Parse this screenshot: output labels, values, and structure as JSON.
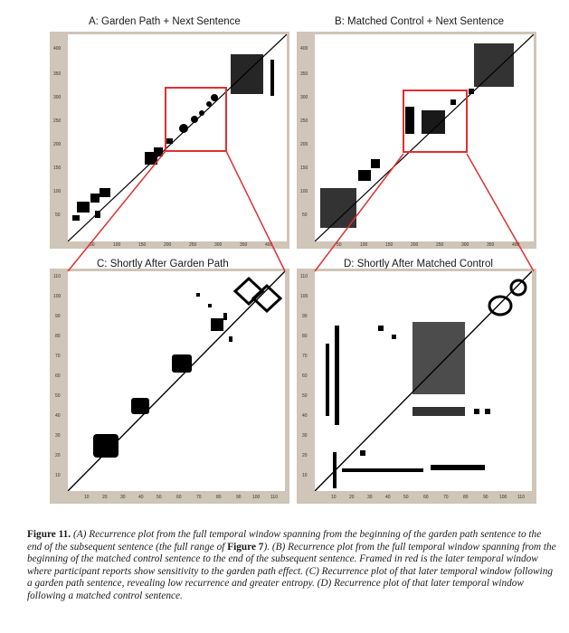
{
  "panels": {
    "a": {
      "title": "A: Garden Path + Next Sentence",
      "y_ticks": [
        "400",
        "350",
        "300",
        "250",
        "200",
        "150",
        "100",
        "50"
      ],
      "x_ticks": [
        "50",
        "100",
        "150",
        "200",
        "250",
        "300",
        "350",
        "400"
      ]
    },
    "b": {
      "title": "B: Matched Control + Next Sentence",
      "y_ticks": [
        "400",
        "350",
        "300",
        "250",
        "200",
        "150",
        "100",
        "50"
      ],
      "x_ticks": [
        "50",
        "100",
        "150",
        "200",
        "250",
        "300",
        "350",
        "400"
      ]
    },
    "c": {
      "title": "C: Shortly After Garden Path",
      "y_ticks": [
        "110",
        "100",
        "90",
        "80",
        "70",
        "60",
        "50",
        "40",
        "30",
        "20",
        "10"
      ],
      "x_ticks": [
        "10",
        "20",
        "30",
        "40",
        "50",
        "60",
        "70",
        "80",
        "90",
        "100",
        "110"
      ]
    },
    "d": {
      "title": "D: Shortly After Matched Control",
      "y_ticks": [
        "110",
        "100",
        "90",
        "80",
        "70",
        "60",
        "50",
        "40",
        "30",
        "20",
        "10"
      ],
      "x_ticks": [
        "10",
        "20",
        "30",
        "40",
        "50",
        "60",
        "70",
        "80",
        "90",
        "100",
        "110"
      ]
    }
  },
  "colors": {
    "highlight_frame": "#e03030",
    "panel_border": "#cfc5b8",
    "marks": "#000000"
  },
  "caption": {
    "label": "Figure 11.",
    "text_1": " (A) Recurrence plot from the full temporal window spanning from the beginning of the garden path sentence to the end of the subsequent sentence (the full range of ",
    "figure_ref": "Figure 7",
    "text_2": "). (B) Recurrence plot from the full temporal window spanning from the beginning of the matched control sentence to the end of the subsequent sentence. Framed in red is the later temporal window where participant reports show sensitivity to the garden path effect. (C) Recurrence plot of that later temporal window following a garden path sentence, revealing low recurrence and greater entropy. (D) Recurrence plot of that later temporal window following a matched control sentence."
  }
}
